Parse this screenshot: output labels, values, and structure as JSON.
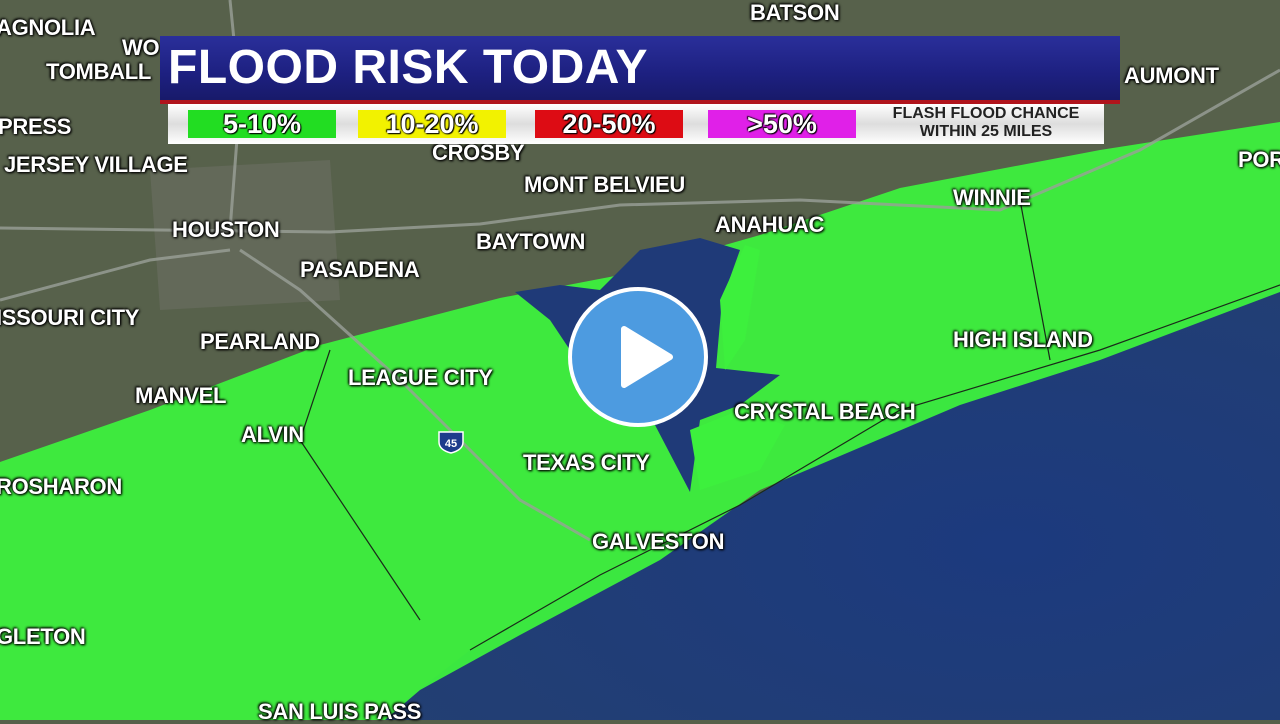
{
  "title": "FLOOD RISK TODAY",
  "legend": {
    "items": [
      {
        "label": "5-10%",
        "color": "#22dd22"
      },
      {
        "label": "10-20%",
        "color": "#f2f200"
      },
      {
        "label": "20-50%",
        "color": "#dd0c14"
      },
      {
        "label": ">50%",
        "color": "#e020e8"
      }
    ],
    "note_line1": "FLASH FLOOD CHANCE",
    "note_line2": "WITHIN 25 MILES"
  },
  "cities": [
    "AGNOLIA",
    "WO",
    "TOMBALL",
    "BATSON",
    "AUMONT",
    "PRESS",
    "JERSEY VILLAGE",
    "CROSBY",
    "MONT BELVIEU",
    "WINNIE",
    "POR",
    "HOUSTON",
    "ANAHUAC",
    "BAYTOWN",
    "PASADENA",
    "ISSOURI CITY",
    "HIGH ISLAND",
    "PEARLAND",
    "LEAGUE CITY",
    "MANVEL",
    "CRYSTAL BEACH",
    "ALVIN",
    "TEXAS CITY",
    "ROSHARON",
    "GALVESTON",
    "GLETON",
    "SAN LUIS PASS"
  ],
  "interstate": "45",
  "risk_area_level": "5-10%",
  "colors": {
    "land": "#56604a",
    "water": "#1f3a78",
    "risk": "#3cf03c"
  },
  "play_icon": "play-icon"
}
